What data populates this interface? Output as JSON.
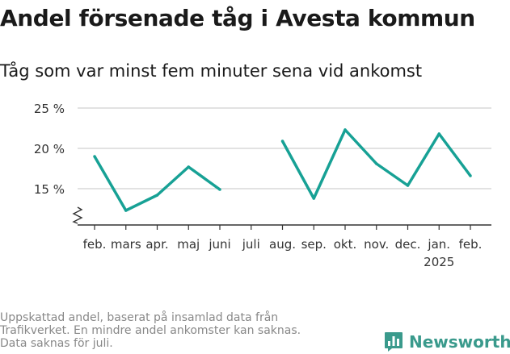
{
  "header": {
    "title": "Andel försenade tåg i Avesta kommun",
    "subtitle": "Tåg som var minst fem minuter sena vid ankomst"
  },
  "footer": {
    "note_lines": [
      "Uppskattad andel, baserat på insamlad data från",
      "Trafikverket. En mindre andel ankomster kan saknas.",
      "Data saknas för juli."
    ],
    "brand": "Newsworthy",
    "brand_icon": "bar-chart-logo-icon"
  },
  "colors": {
    "line": "#17a195",
    "grid": "#d9d9d9",
    "axis": "#333333",
    "brand": "#3a9a8c"
  },
  "chart_data": {
    "type": "line",
    "title": "Andel försenade tåg i Avesta kommun",
    "subtitle": "Tåg som var minst fem minuter sena vid ankomst",
    "categories": [
      "feb.",
      "mars",
      "apr.",
      "maj",
      "juni",
      "juli",
      "aug.",
      "sep.",
      "okt.",
      "nov.",
      "dec.",
      "jan.",
      "feb."
    ],
    "year_labels": [
      {
        "index": 11,
        "label": "2025"
      }
    ],
    "series": [
      {
        "values": [
          19.0,
          12.3,
          14.2,
          17.7,
          14.9,
          null,
          20.9,
          13.8,
          22.3,
          18.1,
          15.4,
          21.8,
          16.6
        ]
      }
    ],
    "yticks": [
      15,
      20,
      25
    ],
    "ytick_labels": [
      "15 %",
      "20 %",
      "25 %"
    ],
    "ylim": [
      10.5,
      25
    ],
    "axis_break": true,
    "grid": true,
    "legend": "none"
  }
}
